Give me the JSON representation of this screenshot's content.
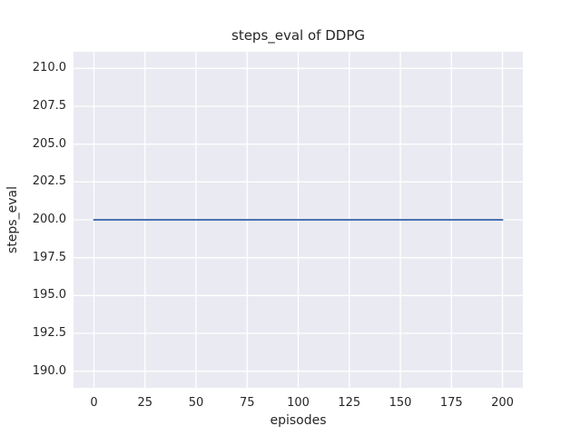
{
  "figure": {
    "background": "#ffffff"
  },
  "chart_data": {
    "type": "line",
    "title": "steps_eval of DDPG",
    "xlabel": "episodes",
    "ylabel": "steps_eval",
    "xlim": [
      -10,
      210
    ],
    "ylim": [
      188.9,
      211.1
    ],
    "x_ticks": [
      0,
      25,
      50,
      75,
      100,
      125,
      150,
      175,
      200
    ],
    "x_tick_labels": [
      "0",
      "25",
      "50",
      "75",
      "100",
      "125",
      "150",
      "175",
      "200"
    ],
    "y_ticks": [
      190.0,
      192.5,
      195.0,
      197.5,
      200.0,
      202.5,
      205.0,
      207.5,
      210.0
    ],
    "y_tick_labels": [
      "190.0",
      "192.5",
      "195.0",
      "197.5",
      "200.0",
      "202.5",
      "205.0",
      "207.5",
      "210.0"
    ],
    "grid": true,
    "legend": false,
    "series": [
      {
        "name": "DDPG",
        "x": [
          0,
          200
        ],
        "y": [
          200,
          200
        ],
        "color": "#4c72b0",
        "linewidth": 2
      }
    ],
    "style": {
      "figure_bg": "#ffffff",
      "plot_bg": "#eaeaf2",
      "grid_color": "#ffffff",
      "text_color": "#262626"
    }
  }
}
